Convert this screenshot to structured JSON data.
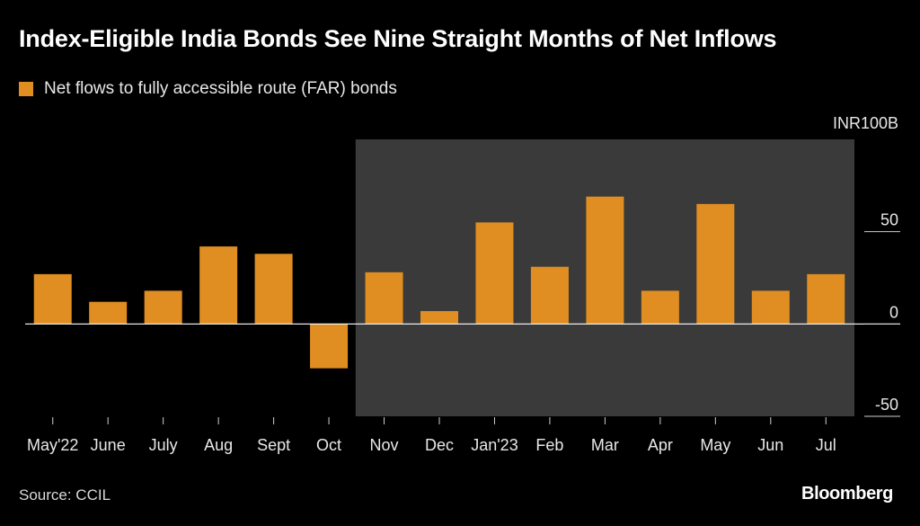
{
  "header": {
    "title": "Index-Eligible India Bonds See Nine Straight Months of Net Inflows",
    "legend_label": "Net flows to fully accessible route (FAR) bonds",
    "unit_label": "INR100B"
  },
  "footer": {
    "source": "Source: CCIL",
    "brand": "Bloomberg"
  },
  "colors": {
    "background": "#000000",
    "bar": "#e08e21",
    "highlight": "#3a3a3a",
    "axis": "#ffffff",
    "text": "#e8e8e8"
  },
  "chart_data": {
    "type": "bar",
    "title": "Index-Eligible India Bonds See Nine Straight Months of Net Inflows",
    "xlabel": "",
    "ylabel": "INR100B",
    "categories": [
      "May'22",
      "June",
      "July",
      "Aug",
      "Sept",
      "Oct",
      "Nov",
      "Dec",
      "Jan'23",
      "Feb",
      "Mar",
      "Apr",
      "May",
      "Jun",
      "Jul"
    ],
    "series": [
      {
        "name": "Net flows to fully accessible route (FAR) bonds",
        "values": [
          27,
          12,
          18,
          42,
          38,
          -24,
          28,
          7,
          55,
          31,
          69,
          18,
          65,
          18,
          27
        ]
      }
    ],
    "ylim": [
      -50,
      100
    ],
    "yticks": [
      50,
      0,
      -50
    ],
    "ytick_labels": [
      "50",
      "0",
      "-50"
    ],
    "highlight_range": [
      "Nov",
      "Jul"
    ],
    "grid": false,
    "legend_position": "top-left"
  }
}
